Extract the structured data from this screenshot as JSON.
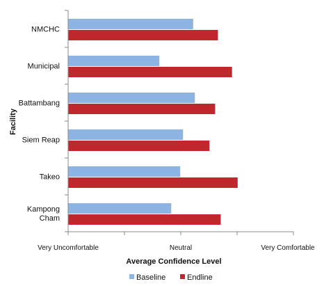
{
  "chart_data": {
    "type": "bar",
    "orientation": "horizontal",
    "xlabel": "Average Confidence Level",
    "ylabel": "Facility",
    "xlim": [
      1,
      5
    ],
    "x_tick_values": [
      1,
      2,
      3,
      4,
      5
    ],
    "x_tick_labels": [
      "Very Uncomfortable",
      "",
      "Neutral",
      "",
      "Very Comfortable"
    ],
    "grid": false,
    "legend_position": "bottom",
    "categories": [
      {
        "name": "NMCHC",
        "lines": [
          "NMCHC"
        ]
      },
      {
        "name": "Municipal",
        "lines": [
          "Municipal"
        ]
      },
      {
        "name": "Battambang",
        "lines": [
          "Battambang"
        ]
      },
      {
        "name": "Siem Reap",
        "lines": [
          "Siem Reap"
        ]
      },
      {
        "name": "Takeo",
        "lines": [
          "Takeo"
        ]
      },
      {
        "name": "Kampong Cham",
        "lines": [
          "Kampong",
          "Cham"
        ]
      }
    ],
    "series": [
      {
        "name": "Baseline",
        "color": "#8db4e2",
        "values": [
          3.22,
          2.62,
          3.25,
          3.04,
          2.99,
          2.83
        ]
      },
      {
        "name": "Endline",
        "color": "#c0282d",
        "values": [
          3.66,
          3.91,
          3.61,
          3.51,
          4.01,
          3.71
        ]
      }
    ]
  }
}
